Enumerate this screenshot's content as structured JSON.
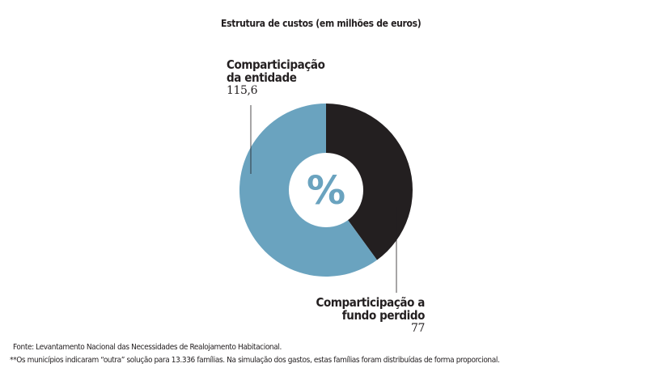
{
  "chart_data": {
    "type": "pie",
    "title": "Estrutura de custos (em milhões de euros)",
    "center_label": "%",
    "slices": [
      {
        "label_line1": "Comparticipação a",
        "label_line2": "fundo perdido",
        "value": 77,
        "value_text": "77",
        "color": "#231f20"
      },
      {
        "label_line1": "Comparticipação",
        "label_line2": "da entidade",
        "value": 115.6,
        "value_text": "115,6",
        "color": "#6aa3bf"
      }
    ]
  },
  "footnotes": {
    "source": "Fonte: Levantamento Nacional das Necessidades de Realojamento Habitacional.",
    "note": "**Os municípios indicaram “outra” solução para 13.336 famílias. Na simulação dos gastos, estas famílias foram distribuídas de forma proporcional."
  }
}
